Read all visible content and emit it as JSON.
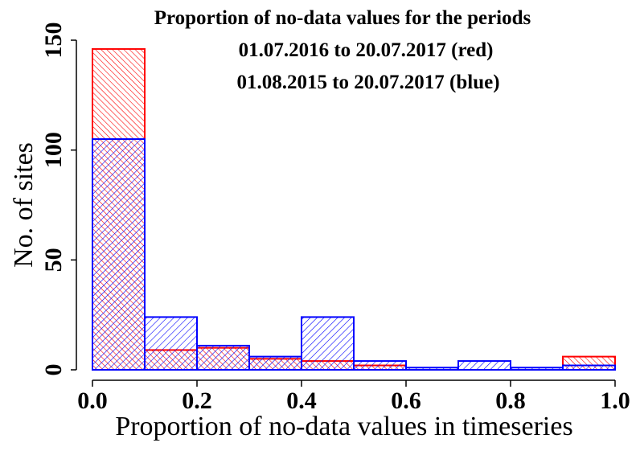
{
  "chart_data": {
    "type": "bar",
    "title_lines": [
      "Proportion of no-data values for the periods",
      "01.07.2016  to  20.07.2017  (red)",
      "01.08.2015  to  20.07.2017  (blue)"
    ],
    "xlabel": "Proportion of  no-data values in timeseries",
    "ylabel": "No. of sites",
    "xlim": [
      0,
      1
    ],
    "ylim": [
      0,
      150
    ],
    "x_ticks": [
      "0.0",
      "0.2",
      "0.4",
      "0.6",
      "0.8",
      "1.0"
    ],
    "y_ticks": [
      "0",
      "50",
      "100",
      "150"
    ],
    "bin_edges": [
      0.0,
      0.1,
      0.2,
      0.3,
      0.4,
      0.5,
      0.6,
      0.7,
      0.8,
      0.9,
      1.0
    ],
    "series": [
      {
        "name": "red",
        "color": "#ff0000",
        "counts": [
          146,
          9,
          10,
          5,
          4,
          2,
          0,
          0,
          0,
          6
        ]
      },
      {
        "name": "blue",
        "color": "#0000ff",
        "counts": [
          105,
          24,
          11,
          6,
          24,
          4,
          1,
          4,
          1,
          2
        ]
      }
    ]
  }
}
